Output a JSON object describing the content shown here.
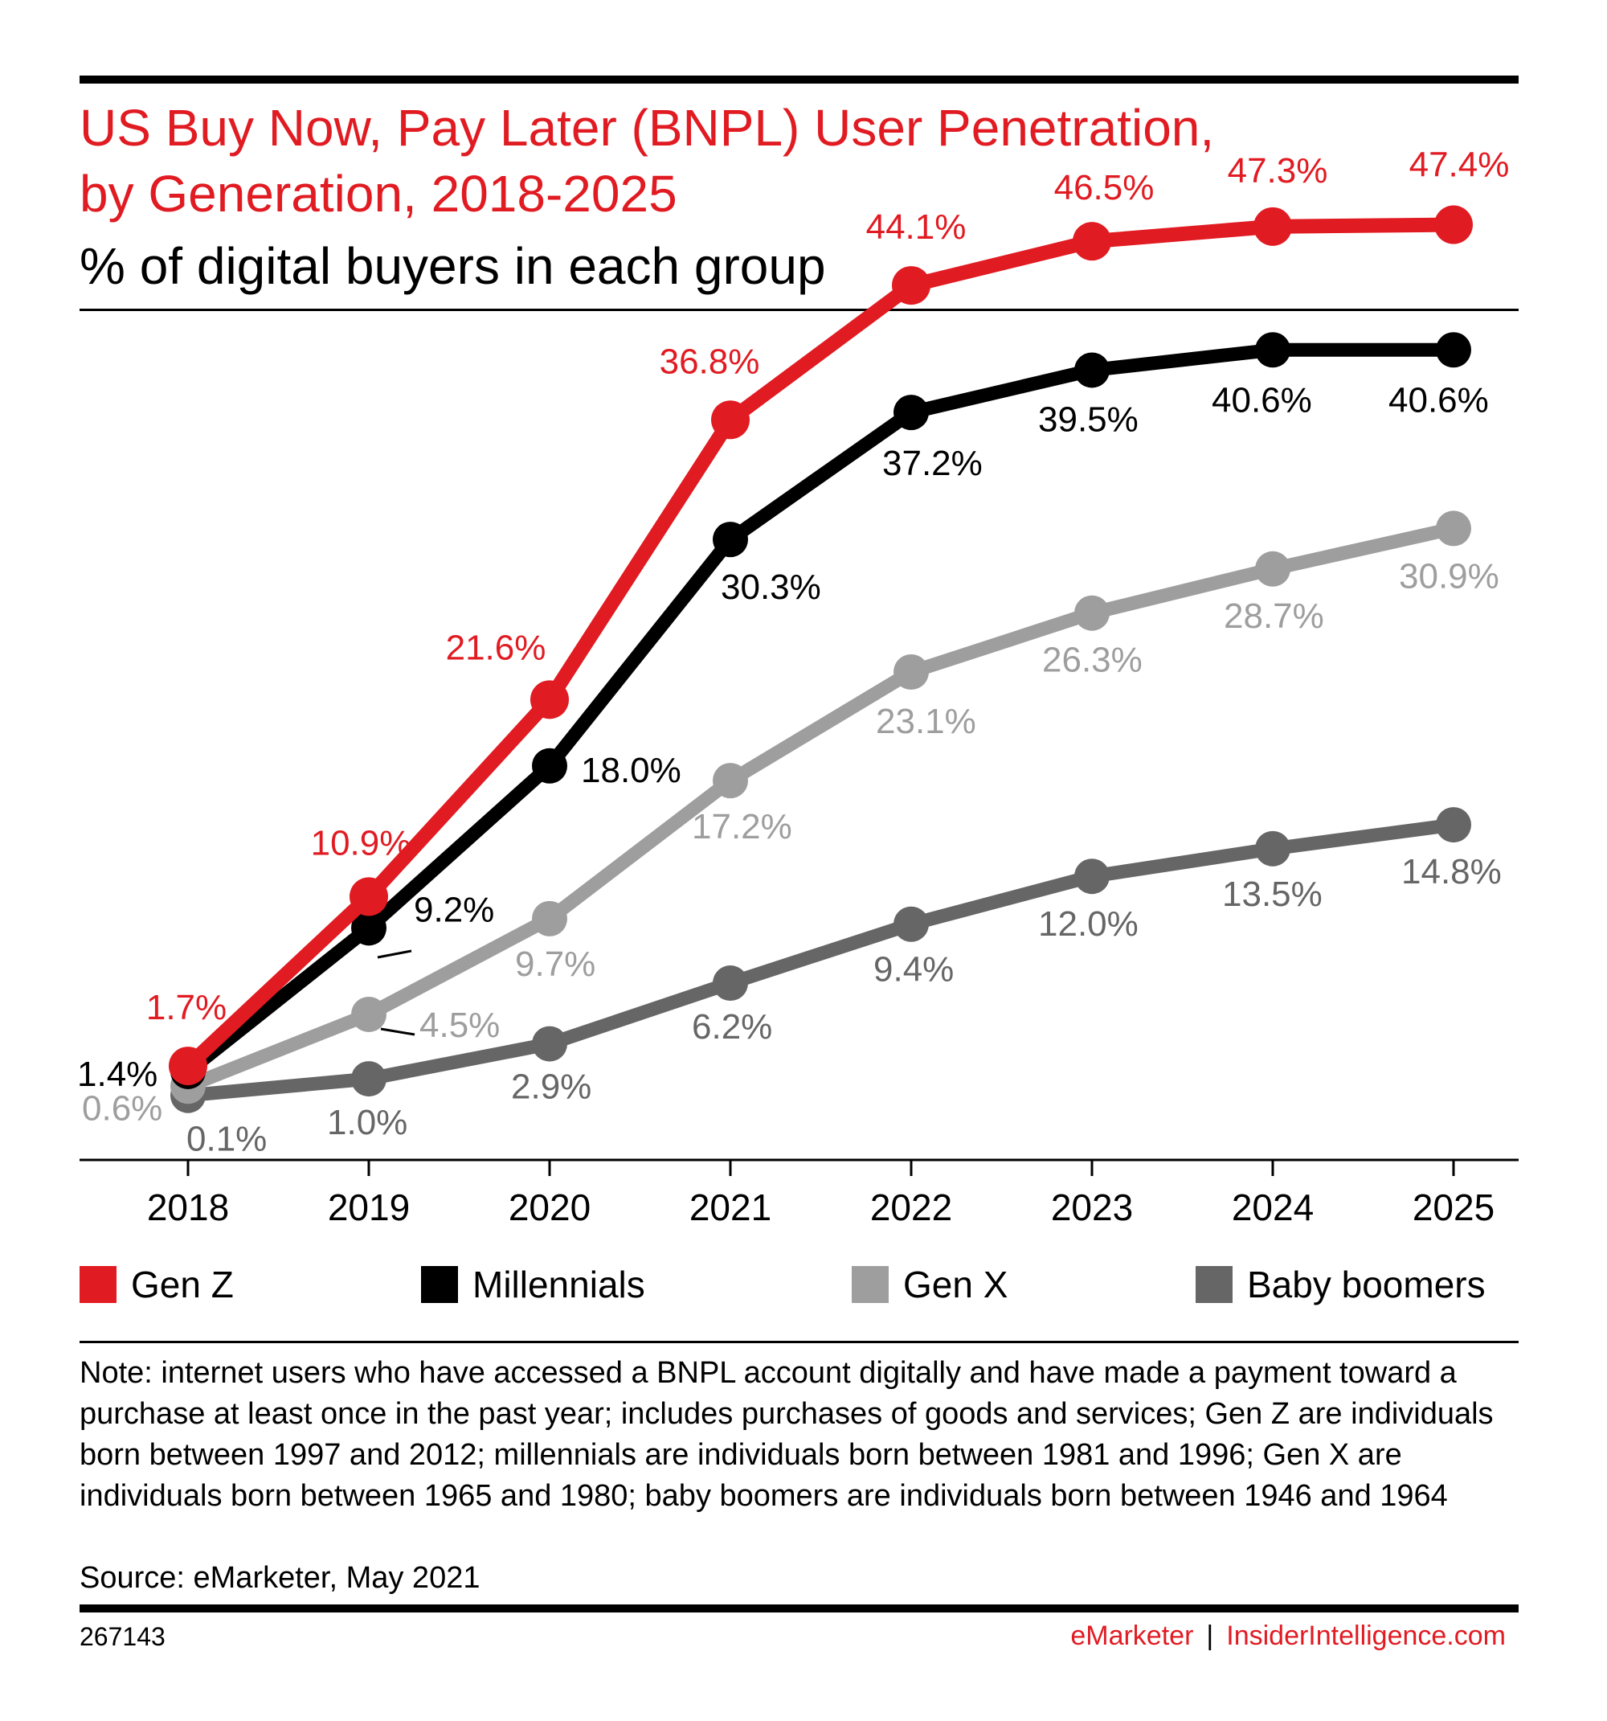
{
  "title_line1": "US Buy Now, Pay Later (BNPL) User Penetration,",
  "title_line2": "by Generation, 2018-2025",
  "subtitle": "% of digital buyers in each group",
  "chart_data": {
    "type": "line",
    "title": "US Buy Now, Pay Later (BNPL) User Penetration, by Generation, 2018-2025",
    "subtitle": "% of digital buyers in each group",
    "x": [
      "2018",
      "2019",
      "2020",
      "2021",
      "2022",
      "2023",
      "2024",
      "2025"
    ],
    "ylim": [
      0,
      50
    ],
    "grid": false,
    "legend_position": "bottom",
    "series": [
      {
        "name": "Gen Z",
        "color": "#e11b22",
        "values": [
          1.7,
          10.9,
          21.6,
          36.8,
          44.1,
          46.5,
          47.3,
          47.4
        ],
        "labels": [
          "1.7%",
          "10.9%",
          "21.6%",
          "36.8%",
          "44.1%",
          "46.5%",
          "47.3%",
          "47.4%"
        ]
      },
      {
        "name": "Millennials",
        "color": "#000000",
        "values": [
          1.4,
          9.2,
          18.0,
          30.3,
          37.2,
          39.5,
          40.6,
          40.6
        ],
        "labels": [
          "1.4%",
          "9.2%",
          "18.0%",
          "30.3%",
          "37.2%",
          "39.5%",
          "40.6%",
          "40.6%"
        ]
      },
      {
        "name": "Gen X",
        "color": "#9e9e9e",
        "values": [
          0.6,
          4.5,
          9.7,
          17.2,
          23.1,
          26.3,
          28.7,
          30.9
        ],
        "labels": [
          "0.6%",
          "4.5%",
          "9.7%",
          "17.2%",
          "23.1%",
          "26.3%",
          "28.7%",
          "30.9%"
        ]
      },
      {
        "name": "Baby boomers",
        "color": "#666666",
        "values": [
          0.1,
          1.0,
          2.9,
          6.2,
          9.4,
          12.0,
          13.5,
          14.8
        ],
        "labels": [
          "0.1%",
          "1.0%",
          "2.9%",
          "6.2%",
          "9.4%",
          "12.0%",
          "13.5%",
          "14.8%"
        ]
      }
    ]
  },
  "note": "Note: internet users who have accessed a BNPL account digitally and have made a payment toward a purchase at least once in the past year; includes purchases of goods and services; Gen Z are individuals born between 1997 and 2012; millennials are individuals born between 1981 and 1996; Gen X are individuals born between 1965 and 1980; baby boomers are individuals born between 1946 and 1964",
  "source": "Source: eMarketer, May 2021",
  "footer": {
    "id": "267143",
    "brand": "eMarketer",
    "separator": "|",
    "site": "InsiderIntelligence.com"
  }
}
